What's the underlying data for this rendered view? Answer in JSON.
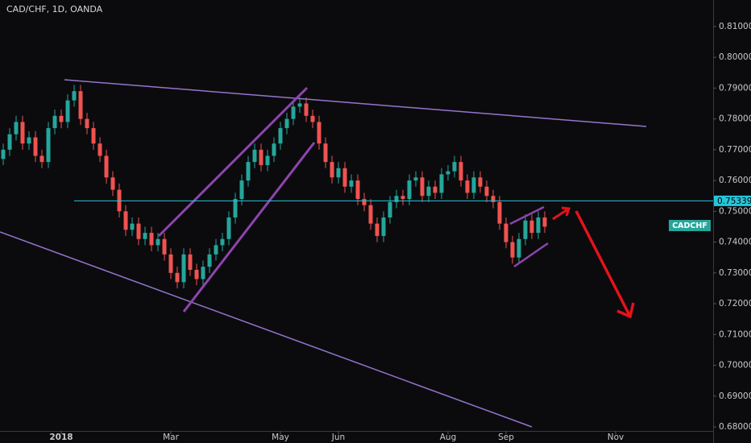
{
  "chart_data": {
    "type": "candlestick",
    "title": "CAD/CHF, 1D, OANDA",
    "symbol_label": "CADCHF",
    "price_line": 0.75339,
    "up_color": "#26a69a",
    "down_color": "#ef5350",
    "ylim": [
      0.6787,
      0.8186
    ],
    "yticks": [
      {
        "value": 0.68,
        "label": "0.68000"
      },
      {
        "value": 0.69,
        "label": "0.69000"
      },
      {
        "value": 0.7,
        "label": "0.70000"
      },
      {
        "value": 0.71,
        "label": "0.71000"
      },
      {
        "value": 0.72,
        "label": "0.72000"
      },
      {
        "value": 0.73,
        "label": "0.73000"
      },
      {
        "value": 0.74,
        "label": "0.74000"
      },
      {
        "value": 0.75,
        "label": "0.75000"
      },
      {
        "value": 0.76,
        "label": "0.76000"
      },
      {
        "value": 0.77,
        "label": "0.77000"
      },
      {
        "value": 0.78,
        "label": "0.78000"
      },
      {
        "value": 0.79,
        "label": "0.79000"
      },
      {
        "value": 0.8,
        "label": "0.80000"
      },
      {
        "value": 0.81,
        "label": "0.81000"
      }
    ],
    "categories": [
      null,
      null,
      null,
      null,
      null,
      null,
      null,
      null,
      null,
      "2018",
      null,
      null,
      null,
      null,
      null,
      null,
      null,
      null,
      null,
      null,
      null,
      null,
      null,
      null,
      null,
      null,
      "Mar",
      null,
      null,
      null,
      null,
      null,
      null,
      null,
      null,
      null,
      null,
      null,
      null,
      null,
      null,
      null,
      null,
      "May",
      null,
      null,
      null,
      null,
      null,
      null,
      null,
      null,
      "Jun",
      null,
      null,
      null,
      null,
      null,
      null,
      null,
      null,
      null,
      null,
      null,
      null,
      null,
      null,
      null,
      null,
      "Aug",
      null,
      null,
      null,
      null,
      null,
      null,
      null,
      null,
      "Sep",
      null,
      null,
      null,
      null,
      null,
      null,
      null,
      null,
      null,
      null,
      null,
      null,
      null,
      null,
      null,
      null,
      "Nov",
      null,
      null,
      null,
      null,
      null,
      null,
      null,
      null,
      null,
      null,
      null,
      null,
      null,
      null
    ],
    "open": [
      0.767,
      0.77,
      0.775,
      0.779,
      0.772,
      0.774,
      0.768,
      0.766,
      0.777,
      0.781,
      0.779,
      0.786,
      0.789,
      0.78,
      0.777,
      0.772,
      0.768,
      0.761,
      0.757,
      0.75,
      0.744,
      0.746,
      0.741,
      0.743,
      0.739,
      0.741,
      0.736,
      0.73,
      0.727,
      0.736,
      0.731,
      0.728,
      0.732,
      0.736,
      0.739,
      0.741,
      0.748,
      0.754,
      0.76,
      0.766,
      0.77,
      0.765,
      0.768,
      0.772,
      0.777,
      0.78,
      0.784,
      0.785,
      0.781,
      0.779,
      0.772,
      0.766,
      0.761,
      0.764,
      0.758,
      0.76,
      0.754,
      0.752,
      0.746,
      0.742,
      0.748,
      0.753,
      0.755,
      0.754,
      0.76,
      0.761,
      0.755,
      0.758,
      0.756,
      0.762,
      0.763,
      0.766,
      0.76,
      0.756,
      0.761,
      0.758,
      0.755,
      0.753,
      0.746,
      0.74,
      0.735,
      0.741,
      0.747,
      0.743,
      0.748,
      null,
      null,
      null,
      null,
      null,
      null,
      null,
      null,
      null,
      null,
      null,
      null,
      null,
      null,
      null,
      null,
      null,
      null,
      null,
      null,
      null,
      null,
      null,
      null,
      null
    ],
    "high": [
      0.772,
      0.777,
      0.781,
      0.781,
      0.776,
      0.776,
      0.77,
      0.779,
      0.783,
      0.783,
      0.788,
      0.791,
      0.791,
      0.782,
      0.779,
      0.774,
      0.77,
      0.763,
      0.759,
      0.752,
      0.748,
      0.748,
      0.745,
      0.745,
      0.743,
      0.743,
      0.738,
      0.732,
      0.738,
      0.738,
      0.733,
      0.734,
      0.738,
      0.741,
      0.743,
      0.75,
      0.756,
      0.762,
      0.768,
      0.772,
      0.772,
      0.77,
      0.774,
      0.779,
      0.782,
      0.786,
      0.787,
      0.787,
      0.783,
      0.781,
      0.774,
      0.768,
      0.766,
      0.766,
      0.762,
      0.762,
      0.756,
      0.754,
      0.748,
      0.75,
      0.755,
      0.757,
      0.757,
      0.762,
      0.763,
      0.763,
      0.76,
      0.76,
      0.764,
      0.765,
      0.768,
      0.768,
      0.762,
      0.763,
      0.763,
      0.76,
      0.757,
      0.755,
      0.748,
      0.742,
      0.743,
      0.749,
      0.749,
      0.75,
      0.75,
      null,
      null,
      null,
      null,
      null,
      null,
      null,
      null,
      null,
      null,
      null,
      null,
      null,
      null,
      null,
      null,
      null,
      null,
      null,
      null,
      null,
      null,
      null,
      null,
      null
    ],
    "low": [
      0.765,
      0.768,
      0.773,
      0.77,
      0.77,
      0.766,
      0.764,
      0.764,
      0.775,
      0.777,
      0.777,
      0.784,
      0.778,
      0.775,
      0.77,
      0.766,
      0.759,
      0.755,
      0.748,
      0.742,
      0.742,
      0.739,
      0.739,
      0.737,
      0.737,
      0.734,
      0.728,
      0.725,
      0.725,
      0.729,
      0.726,
      0.726,
      0.73,
      0.734,
      0.737,
      0.739,
      0.746,
      0.752,
      0.758,
      0.764,
      0.763,
      0.763,
      0.766,
      0.77,
      0.775,
      0.778,
      0.782,
      0.779,
      0.777,
      0.77,
      0.764,
      0.759,
      0.759,
      0.756,
      0.756,
      0.752,
      0.75,
      0.744,
      0.74,
      0.74,
      0.746,
      0.751,
      0.752,
      0.752,
      0.758,
      0.753,
      0.753,
      0.754,
      0.754,
      0.76,
      0.761,
      0.758,
      0.754,
      0.754,
      0.756,
      0.753,
      0.751,
      0.744,
      0.738,
      0.733,
      0.733,
      0.739,
      0.741,
      0.741,
      0.743,
      null,
      null,
      null,
      null,
      null,
      null,
      null,
      null,
      null,
      null,
      null,
      null,
      null,
      null,
      null,
      null,
      null,
      null,
      null,
      null,
      null,
      null,
      null,
      null,
      null
    ],
    "close": [
      0.77,
      0.775,
      0.779,
      0.772,
      0.774,
      0.768,
      0.766,
      0.777,
      0.781,
      0.779,
      0.786,
      0.789,
      0.78,
      0.777,
      0.772,
      0.768,
      0.761,
      0.757,
      0.75,
      0.744,
      0.746,
      0.741,
      0.743,
      0.739,
      0.741,
      0.736,
      0.73,
      0.727,
      0.736,
      0.731,
      0.728,
      0.732,
      0.736,
      0.739,
      0.741,
      0.748,
      0.754,
      0.76,
      0.766,
      0.77,
      0.765,
      0.768,
      0.772,
      0.777,
      0.78,
      0.784,
      0.785,
      0.781,
      0.779,
      0.772,
      0.766,
      0.761,
      0.764,
      0.758,
      0.76,
      0.754,
      0.752,
      0.746,
      0.742,
      0.748,
      0.753,
      0.755,
      0.754,
      0.76,
      0.761,
      0.755,
      0.758,
      0.756,
      0.762,
      0.763,
      0.766,
      0.76,
      0.756,
      0.761,
      0.758,
      0.755,
      0.753,
      0.746,
      0.74,
      0.735,
      0.741,
      0.747,
      0.743,
      0.748,
      0.745,
      null,
      null,
      null,
      null,
      null,
      null,
      null,
      null,
      null,
      null,
      null,
      null,
      null,
      null,
      null,
      null,
      null,
      null,
      null,
      null,
      null,
      null,
      null,
      null,
      null
    ]
  }
}
